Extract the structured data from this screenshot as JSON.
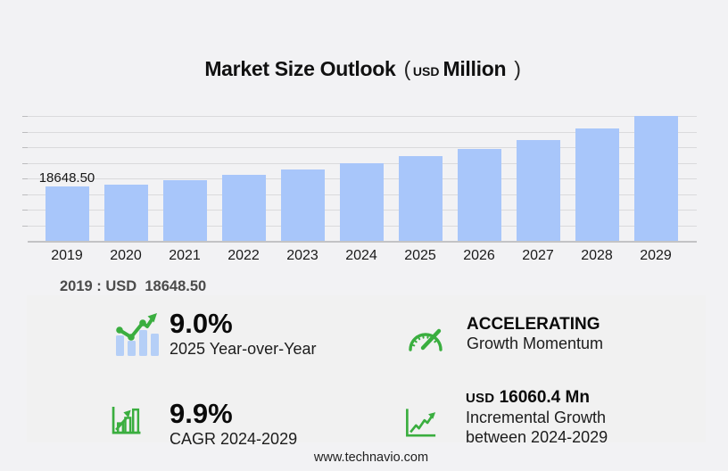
{
  "title": {
    "main": "Market Size Outlook",
    "paren_open": "(",
    "currency": "USD",
    "unit": "Million",
    "paren_close": ")"
  },
  "chart_data": {
    "type": "bar",
    "title": "Market Size Outlook (USD Million)",
    "categories": [
      "2019",
      "2020",
      "2021",
      "2022",
      "2023",
      "2024",
      "2025",
      "2026",
      "2027",
      "2028",
      "2029"
    ],
    "values": [
      18648.5,
      19250,
      20760,
      22590,
      24400,
      26604,
      28998,
      31530,
      34560,
      38350,
      42664.4
    ],
    "xlabel": "",
    "ylabel": "USD Million",
    "ylim": [
      0,
      42700
    ],
    "grid": true,
    "gridline_count": 8,
    "legend": false,
    "bar_color": "#a8c6fa",
    "labeled_points": [
      {
        "category": "2019",
        "label": "18648.50"
      }
    ]
  },
  "annotation": {
    "base_year": "2019 : USD  18648.50"
  },
  "stats": {
    "yoy": {
      "icon": "bar-line-growth-icon",
      "value": "9.0%",
      "label": "2025 Year-over-Year"
    },
    "momentum": {
      "icon": "speedometer-icon",
      "value": "ACCELERATING",
      "label": "Growth Momentum"
    },
    "cagr": {
      "icon": "bar-chart-arrow-icon",
      "value": "9.9%",
      "label": "CAGR 2024-2029"
    },
    "incremental": {
      "icon": "line-chart-arrow-icon",
      "currency": "USD",
      "value": "16060.4 Mn",
      "label_line1": "Incremental Growth",
      "label_line2": "between 2024-2029"
    }
  },
  "footer": {
    "website": "www.technavio.com"
  },
  "colors": {
    "accent_green": "#3aae3f",
    "bar_blue": "#a8c6fa",
    "icon_bar_blue": "#b5cff7",
    "grid_gray": "#dadadc"
  }
}
